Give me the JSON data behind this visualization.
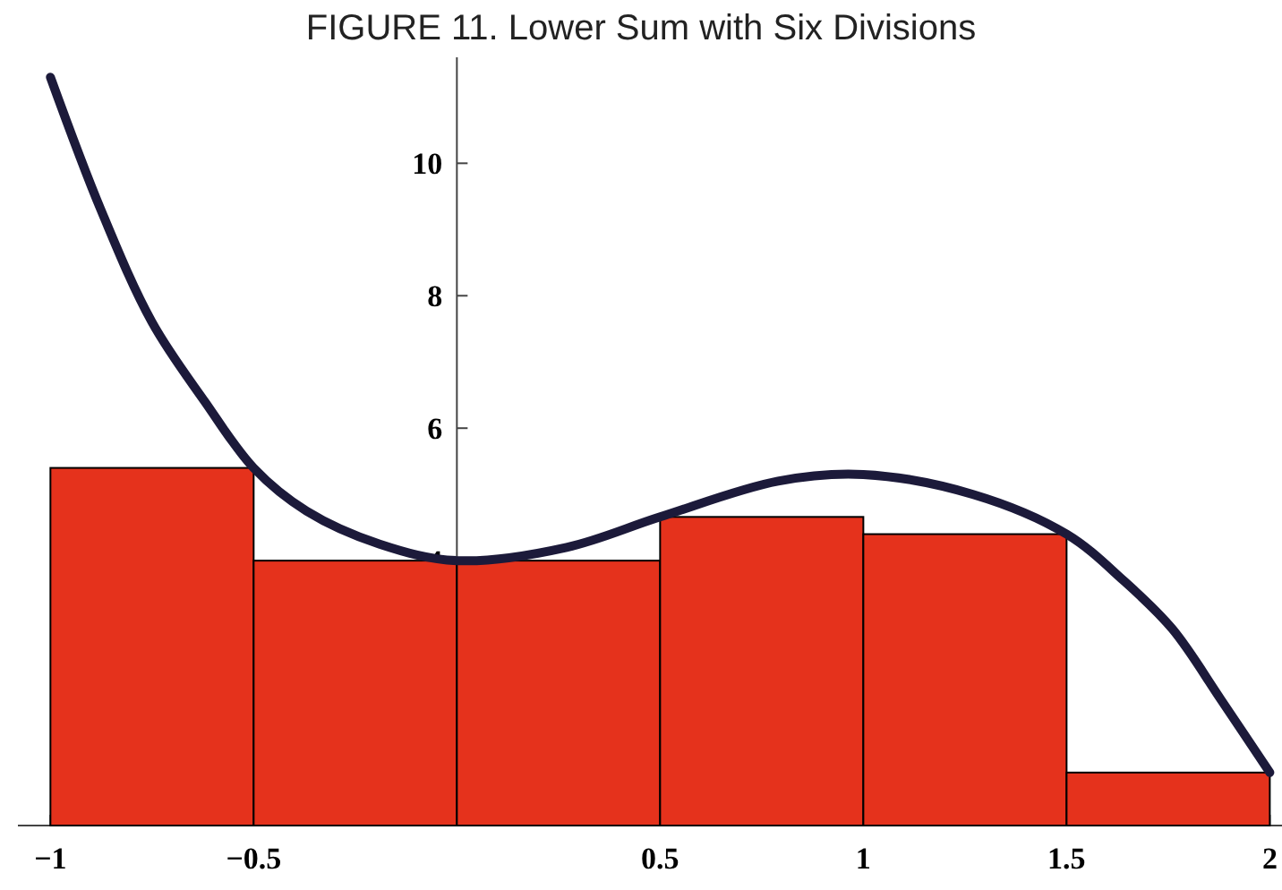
{
  "chart_data": {
    "type": "histogram",
    "title": "FIGURE 11. Lower Sum with Six Divisions",
    "xlim": [
      -1.08,
      2.03
    ],
    "ylim": [
      0,
      11.6
    ],
    "xticks": [
      -1,
      -0.5,
      0.5,
      1,
      1.5,
      2
    ],
    "yticks": [
      4,
      6,
      8,
      10
    ],
    "grid": false,
    "series": [
      {
        "color": "#e5321c",
        "bins": [
          -1,
          -0.5,
          0,
          0.5,
          1,
          1.5,
          2
        ],
        "values": [
          5.4,
          4.0,
          4.0,
          4.66,
          4.4,
          0.8
        ]
      },
      {
        "type": "line",
        "color": "#1c1a3a",
        "x": [
          -1,
          -0.876,
          -0.75,
          -0.62,
          -0.5,
          -0.37,
          -0.19,
          0,
          0.27,
          0.5,
          0.79,
          1,
          1.27,
          1.5,
          1.64,
          1.76,
          1.88,
          2
        ],
        "values": [
          11.3,
          9.3,
          7.6,
          6.4,
          5.4,
          4.75,
          4.25,
          4.0,
          4.2,
          4.66,
          5.2,
          5.3,
          5.0,
          4.4,
          3.7,
          2.97,
          1.9,
          0.8
        ]
      }
    ]
  }
}
